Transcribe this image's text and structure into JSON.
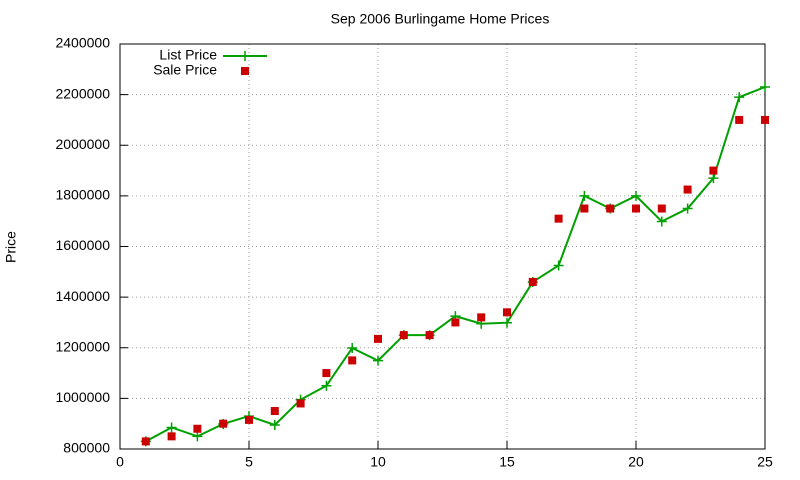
{
  "chart_data": {
    "type": "line",
    "title": "Sep 2006 Burlingame Home Prices",
    "y_label": "Price",
    "x": [
      1,
      2,
      3,
      4,
      5,
      6,
      7,
      8,
      9,
      10,
      11,
      12,
      13,
      14,
      15,
      16,
      17,
      18,
      19,
      20,
      21,
      22,
      23,
      24,
      25
    ],
    "series": [
      {
        "name": "List Price",
        "color": "#00a000",
        "marker": "plus",
        "line": true,
        "values": [
          830000,
          885000,
          850000,
          899000,
          930000,
          895000,
          995000,
          1050000,
          1199000,
          1149000,
          1250000,
          1250000,
          1325000,
          1295000,
          1299000,
          1460000,
          1525000,
          1800000,
          1750000,
          1800000,
          1699000,
          1750000,
          1870000,
          2190000,
          2230000
        ]
      },
      {
        "name": "Sale Price",
        "color": "#cc0000",
        "marker": "square",
        "line": false,
        "values": [
          830000,
          850000,
          880000,
          900000,
          915000,
          950000,
          980000,
          1100000,
          1150000,
          1235000,
          1250000,
          1250000,
          1300000,
          1320000,
          1340000,
          1460000,
          1710000,
          1750000,
          1750000,
          1750000,
          1750000,
          1825000,
          1900000,
          2100000,
          2100000
        ]
      }
    ],
    "xlim": [
      0,
      25
    ],
    "xticks": [
      0,
      5,
      10,
      15,
      20,
      25
    ],
    "ylim": [
      800000,
      2400000
    ],
    "yticks": [
      800000,
      1000000,
      1200000,
      1400000,
      1600000,
      1800000,
      2000000,
      2200000,
      2400000
    ],
    "grid": true,
    "legend": "top-left"
  }
}
